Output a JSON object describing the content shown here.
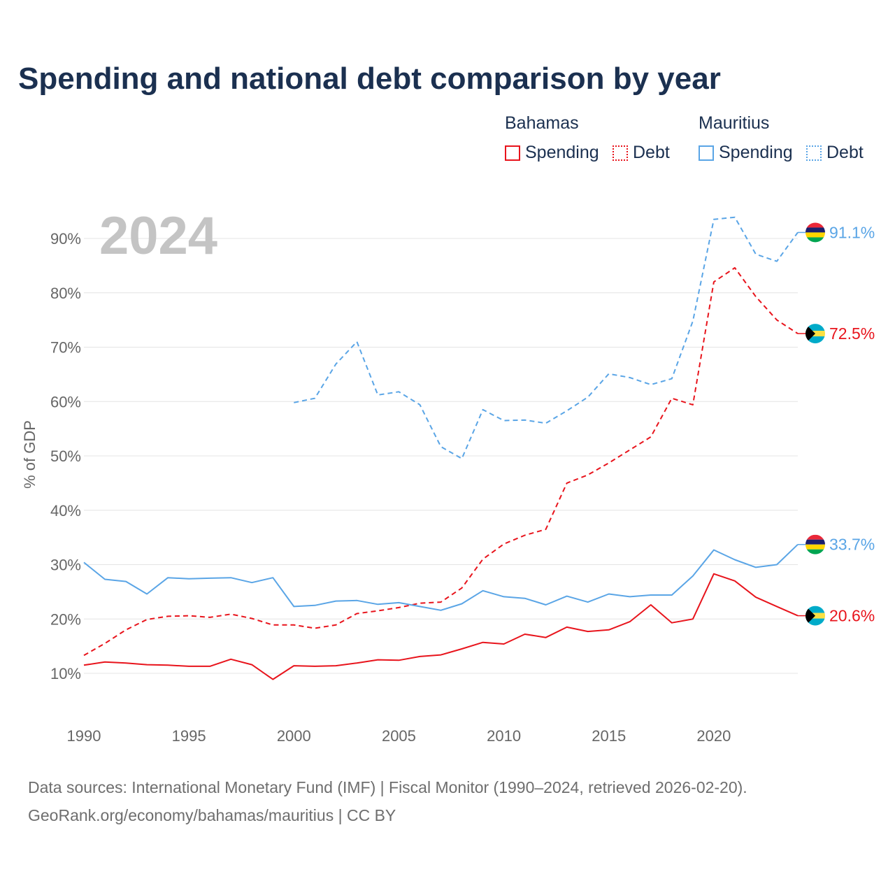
{
  "title": "Spending and national debt comparison by year",
  "legend": {
    "groups": [
      {
        "country": "Bahamas",
        "color": "#e8141c",
        "items": [
          {
            "label": "Spending",
            "style": "solid"
          },
          {
            "label": "Debt",
            "style": "dotted"
          }
        ]
      },
      {
        "country": "Mauritius",
        "color": "#5aa5e6",
        "items": [
          {
            "label": "Spending",
            "style": "solid"
          },
          {
            "label": "Debt",
            "style": "dotted"
          }
        ]
      }
    ]
  },
  "footer": {
    "line1": "Data sources: International Monetary Fund (IMF) | Fiscal Monitor (1990–2024, retrieved 2026-02-20).",
    "line2": "GeoRank.org/economy/bahamas/mauritius | CC BY"
  },
  "chart_data": {
    "type": "line",
    "title": "Spending and national debt comparison by year",
    "year_label": "2024",
    "xlabel": "",
    "ylabel": "% of GDP",
    "xlim": [
      1990,
      2024
    ],
    "ylim": [
      3,
      98
    ],
    "x_ticks": [
      1990,
      1995,
      2000,
      2005,
      2010,
      2015,
      2020
    ],
    "y_ticks": [
      10,
      20,
      30,
      40,
      50,
      60,
      70,
      80,
      90
    ],
    "y_tick_labels": [
      "10%",
      "20%",
      "30%",
      "40%",
      "50%",
      "60%",
      "70%",
      "80%",
      "90%"
    ],
    "grid": "horizontal",
    "series": [
      {
        "name": "Bahamas Debt",
        "country": "Bahamas",
        "kind": "Debt",
        "color": "#e8141c",
        "dash": true,
        "start_year": 1990,
        "values": [
          13.3,
          15.5,
          18.0,
          19.9,
          20.5,
          20.6,
          20.3,
          20.9,
          20.1,
          18.9,
          18.9,
          18.3,
          18.9,
          21.0,
          21.5,
          22.1,
          22.9,
          23.1,
          25.7,
          31.0,
          33.8,
          35.4,
          36.5,
          45.0,
          46.5,
          48.7,
          51.1,
          53.5,
          60.6,
          59.4,
          82.0,
          84.6,
          79.3,
          75.0,
          72.5
        ],
        "end_label": "72.5%",
        "flag": "bahamas-flag-icon"
      },
      {
        "name": "Mauritius Debt",
        "country": "Mauritius",
        "kind": "Debt",
        "color": "#5aa5e6",
        "dash": true,
        "start_year": 2000,
        "values": [
          59.8,
          60.6,
          66.9,
          71.0,
          61.2,
          61.8,
          59.4,
          51.7,
          49.5,
          58.5,
          56.5,
          56.6,
          56.0,
          58.3,
          60.8,
          65.1,
          64.4,
          63.1,
          64.2,
          74.8,
          93.5,
          93.9,
          87.1,
          85.8,
          91.1
        ],
        "end_label": "91.1%",
        "flag": "mauritius-flag-icon"
      },
      {
        "name": "Mauritius Spending",
        "country": "Mauritius",
        "kind": "Spending",
        "color": "#5aa5e6",
        "dash": false,
        "start_year": 1990,
        "values": [
          30.4,
          27.3,
          26.9,
          24.6,
          27.6,
          27.4,
          27.5,
          27.6,
          26.7,
          27.6,
          22.3,
          22.5,
          23.3,
          23.4,
          22.7,
          23.0,
          22.3,
          21.6,
          22.8,
          25.2,
          24.1,
          23.8,
          22.6,
          24.2,
          23.1,
          24.6,
          24.1,
          24.4,
          24.4,
          27.9,
          32.7,
          30.9,
          29.5,
          30.0,
          33.7
        ],
        "end_label": "33.7%",
        "flag": "mauritius-flag-icon"
      },
      {
        "name": "Bahamas Spending",
        "country": "Bahamas",
        "kind": "Spending",
        "color": "#e8141c",
        "dash": false,
        "start_year": 1990,
        "values": [
          11.5,
          12.1,
          11.9,
          11.6,
          11.5,
          11.3,
          11.3,
          12.6,
          11.6,
          8.9,
          11.4,
          11.3,
          11.4,
          11.9,
          12.5,
          12.4,
          13.1,
          13.4,
          14.5,
          15.7,
          15.4,
          17.2,
          16.6,
          18.5,
          17.7,
          18.0,
          19.5,
          22.6,
          19.3,
          20.0,
          28.3,
          27.0,
          24.0,
          22.3,
          20.6
        ],
        "end_label": "20.6%",
        "flag": "bahamas-flag-icon"
      }
    ]
  }
}
